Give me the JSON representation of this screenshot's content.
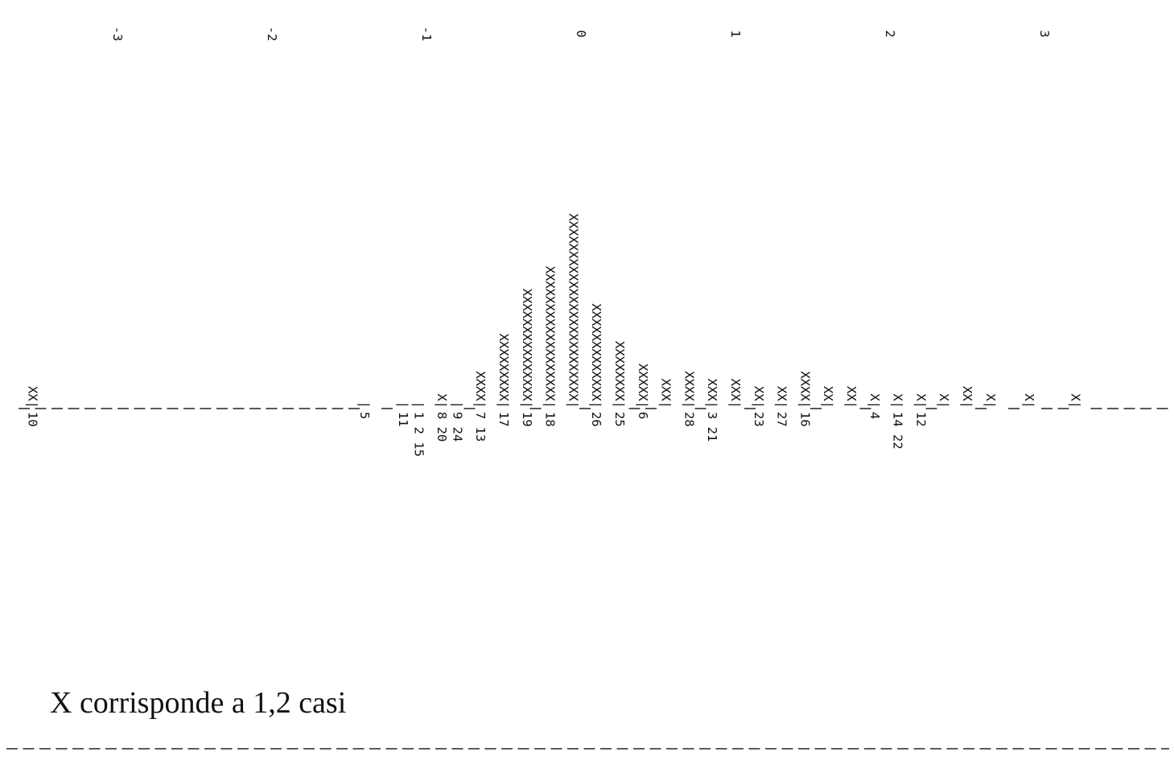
{
  "chart_data": {
    "type": "bar",
    "orientation": "rotated-ascii-histogram",
    "tick_labels": [
      "-3",
      "-2",
      "-1",
      "0",
      "1",
      "2",
      "3"
    ],
    "ticks": [
      -3,
      -2,
      -1,
      0,
      1,
      2,
      3
    ],
    "xlim": [
      -3.6,
      3.9
    ],
    "bar_symbol": "X",
    "baseline_symbol": "|",
    "bins": [
      {
        "x": -3.55,
        "x_count": 2,
        "case_labels": [
          "10"
        ]
      },
      {
        "x": -1.4,
        "x_count": 0,
        "case_labels": [
          "5"
        ]
      },
      {
        "x": -1.15,
        "x_count": 0,
        "case_labels": [
          "11"
        ]
      },
      {
        "x": -1.05,
        "x_count": 0,
        "case_labels": [
          "1",
          "2",
          "15"
        ]
      },
      {
        "x": -0.9,
        "x_count": 1,
        "case_labels": [
          "8",
          "20"
        ]
      },
      {
        "x": -0.8,
        "x_count": 0,
        "case_labels": [
          "9",
          "24"
        ]
      },
      {
        "x": -0.65,
        "x_count": 4,
        "case_labels": [
          "7",
          "13"
        ]
      },
      {
        "x": -0.5,
        "x_count": 9,
        "case_labels": [
          "17"
        ]
      },
      {
        "x": -0.35,
        "x_count": 15,
        "case_labels": [
          "19"
        ]
      },
      {
        "x": -0.2,
        "x_count": 18,
        "case_labels": [
          "18"
        ]
      },
      {
        "x": -0.05,
        "x_count": 25,
        "case_labels": []
      },
      {
        "x": 0.1,
        "x_count": 13,
        "case_labels": [
          "26"
        ]
      },
      {
        "x": 0.25,
        "x_count": 8,
        "case_labels": [
          "25"
        ]
      },
      {
        "x": 0.4,
        "x_count": 5,
        "case_labels": [
          "6"
        ]
      },
      {
        "x": 0.55,
        "x_count": 3,
        "case_labels": []
      },
      {
        "x": 0.7,
        "x_count": 4,
        "case_labels": [
          "28"
        ]
      },
      {
        "x": 0.85,
        "x_count": 3,
        "case_labels": [
          "3",
          "21"
        ]
      },
      {
        "x": 1.0,
        "x_count": 3,
        "case_labels": []
      },
      {
        "x": 1.15,
        "x_count": 2,
        "case_labels": [
          "23"
        ]
      },
      {
        "x": 1.3,
        "x_count": 2,
        "case_labels": [
          "27"
        ]
      },
      {
        "x": 1.45,
        "x_count": 4,
        "case_labels": [
          "16"
        ]
      },
      {
        "x": 1.6,
        "x_count": 2,
        "case_labels": []
      },
      {
        "x": 1.75,
        "x_count": 2,
        "case_labels": []
      },
      {
        "x": 1.9,
        "x_count": 1,
        "case_labels": [
          "4"
        ]
      },
      {
        "x": 2.05,
        "x_count": 1,
        "case_labels": [
          "14",
          "22"
        ]
      },
      {
        "x": 2.2,
        "x_count": 1,
        "case_labels": [
          "12"
        ]
      },
      {
        "x": 2.35,
        "x_count": 1,
        "case_labels": []
      },
      {
        "x": 2.5,
        "x_count": 2,
        "case_labels": []
      },
      {
        "x": 2.65,
        "x_count": 1,
        "case_labels": []
      },
      {
        "x": 2.9,
        "x_count": 1,
        "case_labels": []
      },
      {
        "x": 3.2,
        "x_count": 1,
        "case_labels": []
      }
    ],
    "legend": "X corrisponde a 1,2 casi"
  }
}
